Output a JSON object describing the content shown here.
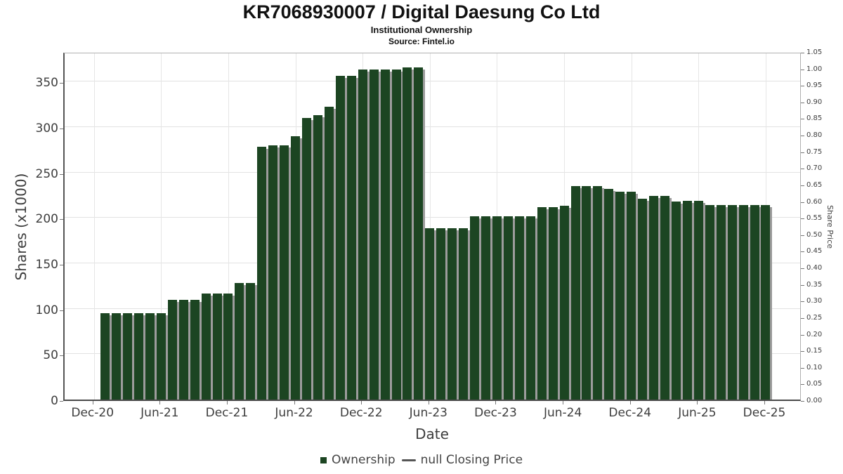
{
  "title": "KR7068930007 / Digital Daesung Co Ltd",
  "subtitle": "Institutional Ownership",
  "source": "Source: Fintel.io",
  "colors": {
    "bar": "#1c4522",
    "bar_shadow": "#9c9c9c",
    "grid": "#e2e2e2",
    "frame": "#aaaaaa",
    "tick_text": "#3d3d3d",
    "legend_dash": "#555555"
  },
  "chart_data": {
    "type": "bar",
    "title": "KR7068930007 / Digital Daesung Co Ltd",
    "subtitle": "Institutional Ownership",
    "source": "Source: Fintel.io",
    "xlabel": "Date",
    "ylabel_left": "Shares (x1000)",
    "ylabel_right": "Share Price",
    "ylim_left": [
      0,
      383
    ],
    "ylim_right": [
      0.0,
      1.05
    ],
    "grid": true,
    "legend_position": "bottom",
    "x_ticks": [
      "Dec-20",
      "Jun-21",
      "Dec-21",
      "Jun-22",
      "Dec-22",
      "Jun-23",
      "Dec-23",
      "Jun-24",
      "Dec-24",
      "Jun-25",
      "Dec-25"
    ],
    "y_left_ticks": [
      "0",
      "50",
      "100",
      "150",
      "200",
      "250",
      "300",
      "350"
    ],
    "y_right_ticks": [
      "1.05",
      "1.00",
      "0.95",
      "0.90",
      "0.85",
      "0.80",
      "0.75",
      "0.70",
      "0.65",
      "0.60",
      "0.55",
      "0.50",
      "0.45",
      "0.40",
      "0.35",
      "0.30",
      "0.25",
      "0.20",
      "0.15",
      "0.10",
      "0.05",
      "0.00"
    ],
    "categories": [
      "Jan-21",
      "Feb-21",
      "Mar-21",
      "Apr-21",
      "May-21",
      "Jun-21",
      "Jul-21",
      "Aug-21",
      "Sep-21",
      "Oct-21",
      "Nov-21",
      "Dec-21",
      "Jan-22",
      "Feb-22",
      "Mar-22",
      "Apr-22",
      "May-22",
      "Jun-22",
      "Jul-22",
      "Aug-22",
      "Sep-22",
      "Oct-22",
      "Nov-22",
      "Dec-22",
      "Jan-23",
      "Feb-23",
      "Mar-23",
      "Apr-23",
      "May-23",
      "Jun-23",
      "Jul-23",
      "Aug-23",
      "Sep-23",
      "Oct-23",
      "Nov-23",
      "Dec-23",
      "Jan-24",
      "Feb-24",
      "Mar-24",
      "Apr-24",
      "May-24",
      "Jun-24",
      "Jul-24",
      "Aug-24",
      "Sep-24",
      "Oct-24",
      "Nov-24",
      "Dec-24",
      "Jan-25",
      "Feb-25",
      "Mar-25",
      "Apr-25",
      "May-25",
      "Jun-25",
      "Jul-25",
      "Aug-25",
      "Sep-25",
      "Oct-25",
      "Nov-25",
      "Dec-25"
    ],
    "values": [
      95,
      95,
      95,
      95,
      95,
      95,
      110,
      110,
      110,
      117,
      117,
      117,
      128,
      128,
      278,
      280,
      280,
      290,
      310,
      313,
      322,
      356,
      356,
      363,
      363,
      363,
      363,
      366,
      366,
      189,
      189,
      189,
      189,
      202,
      202,
      202,
      202,
      202,
      202,
      212,
      212,
      213,
      235,
      235,
      235,
      232,
      229,
      229,
      221,
      224,
      224,
      218,
      219,
      219,
      214,
      214,
      214,
      214,
      214,
      214
    ],
    "legend": [
      {
        "label": "Ownership",
        "swatch": "square"
      },
      {
        "label": "null Closing Price",
        "swatch": "line"
      }
    ]
  }
}
